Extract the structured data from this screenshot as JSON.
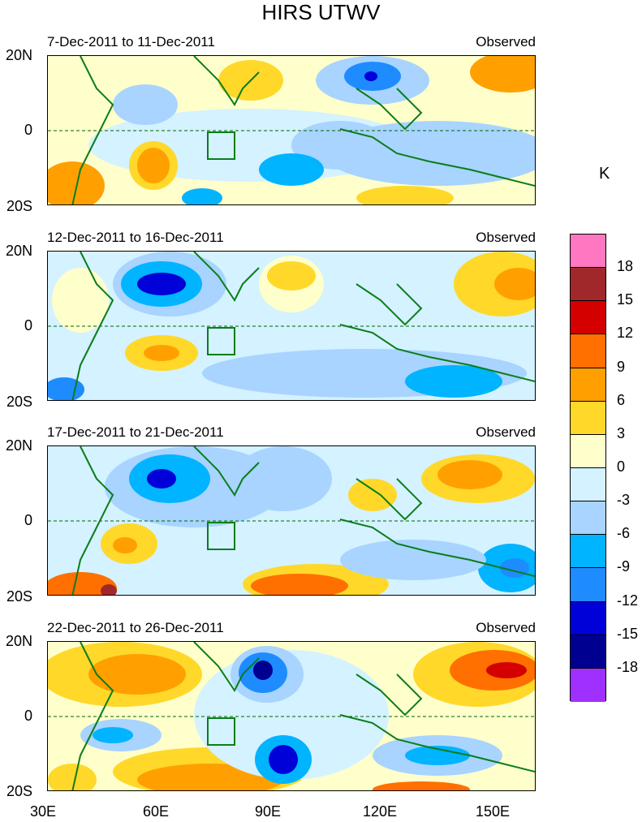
{
  "title": "HIRS UTWV",
  "unit": "K",
  "lat_labels": [
    "20N",
    "0",
    "20S"
  ],
  "lon_labels": [
    "30E",
    "60E",
    "90E",
    "120E",
    "150E"
  ],
  "panels": [
    {
      "date_range": "7-Dec-2011 to 11-Dec-2011",
      "status": "Observed"
    },
    {
      "date_range": "12-Dec-2011 to 16-Dec-2011",
      "status": "Observed"
    },
    {
      "date_range": "17-Dec-2011 to 21-Dec-2011",
      "status": "Observed"
    },
    {
      "date_range": "22-Dec-2011 to 26-Dec-2011",
      "status": "Observed"
    }
  ],
  "colorbar": {
    "labels": [
      "18",
      "15",
      "12",
      "9",
      "6",
      "3",
      "0",
      "-3",
      "-6",
      "-9",
      "-12",
      "-15",
      "-18"
    ],
    "colors": [
      "#ff77c0",
      "#a0282a",
      "#d40000",
      "#ff7000",
      "#ffa000",
      "#ffd82a",
      "#ffffcc",
      "#d4f2ff",
      "#a8d4ff",
      "#00b4ff",
      "#1e8cff",
      "#0000d8",
      "#000090",
      "#a030ff"
    ]
  }
}
